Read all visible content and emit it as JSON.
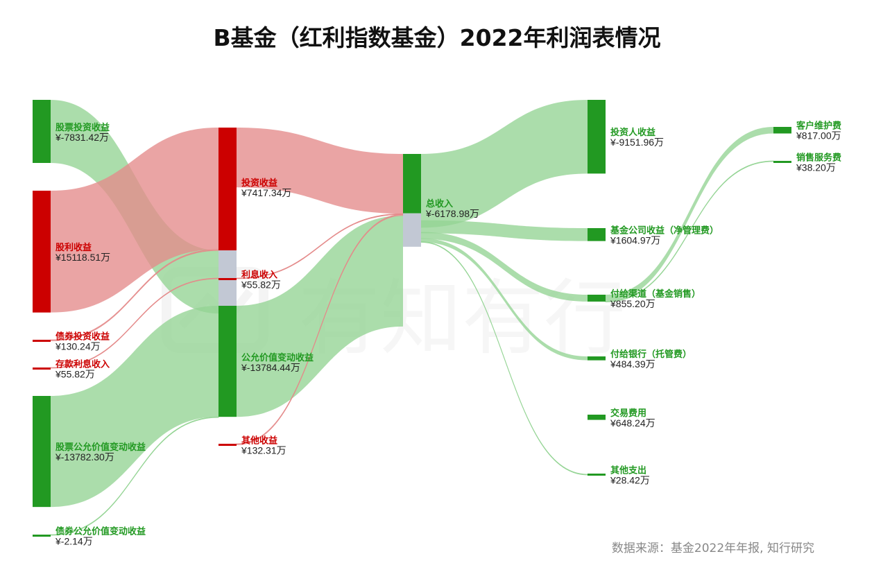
{
  "title": "B基金（红利指数基金）2022年利润表情况",
  "watermark": "有知有行",
  "source": "数据来源：基金2022年年报, 知行研究",
  "colors": {
    "positive": "#cc0000",
    "negative": "#229922",
    "positive_link": "#e48a8a",
    "negative_link": "#94d494",
    "offset": "#c2c8d4"
  },
  "currency_prefix": "¥",
  "unit": "万",
  "chart_data": {
    "type": "sankey",
    "title": "B基金（红利指数基金）2022年利润表情况",
    "nodes": [
      {
        "id": "n1",
        "name": "股票投资收益",
        "value": -7831.42,
        "value_text": "¥-7831.42万",
        "sign": "neg"
      },
      {
        "id": "n2",
        "name": "股利收益",
        "value": 15118.51,
        "value_text": "¥15118.51万",
        "sign": "pos"
      },
      {
        "id": "n3",
        "name": "债券投资收益",
        "value": 130.24,
        "value_text": "¥130.24万",
        "sign": "pos"
      },
      {
        "id": "n4",
        "name": "存款利息收入",
        "value": 55.82,
        "value_text": "¥55.82万",
        "sign": "pos"
      },
      {
        "id": "n5",
        "name": "股票公允价值变动收益",
        "value": -13782.3,
        "value_text": "¥-13782.30万",
        "sign": "neg"
      },
      {
        "id": "n6",
        "name": "债券公允价值变动收益",
        "value": -2.14,
        "value_text": "¥-2.14万",
        "sign": "neg"
      },
      {
        "id": "m1",
        "name": "投资收益",
        "value": 7417.34,
        "value_text": "¥7417.34万",
        "sign": "pos"
      },
      {
        "id": "m2",
        "name": "利息收入",
        "value": 55.82,
        "value_text": "¥55.82万",
        "sign": "pos"
      },
      {
        "id": "m3",
        "name": "公允价值变动收益",
        "value": -13784.44,
        "value_text": "¥-13784.44万",
        "sign": "neg"
      },
      {
        "id": "m4",
        "name": "其他收益",
        "value": 132.31,
        "value_text": "¥132.31万",
        "sign": "pos"
      },
      {
        "id": "t",
        "name": "总收入",
        "value": -6178.98,
        "value_text": "¥-6178.98万",
        "sign": "neg"
      },
      {
        "id": "o1",
        "name": "投资人收益",
        "value": -9151.96,
        "value_text": "¥-9151.96万",
        "sign": "neg"
      },
      {
        "id": "o2",
        "name": "基金公司收益（净管理费）",
        "value": 1604.97,
        "value_text": "¥1604.97万",
        "sign": "neg"
      },
      {
        "id": "o3",
        "name": "付给渠道（基金销售）",
        "value": 855.2,
        "value_text": "¥855.20万",
        "sign": "neg"
      },
      {
        "id": "o4",
        "name": "付给银行（托管费）",
        "value": 484.39,
        "value_text": "¥484.39万",
        "sign": "neg"
      },
      {
        "id": "o5",
        "name": "交易费用",
        "value": 648.24,
        "value_text": "¥648.24万",
        "sign": "neg"
      },
      {
        "id": "o6",
        "name": "其他支出",
        "value": 28.42,
        "value_text": "¥28.42万",
        "sign": "neg"
      },
      {
        "id": "c1",
        "name": "客户维护费",
        "value": 817.0,
        "value_text": "¥817.00万",
        "sign": "neg"
      },
      {
        "id": "c2",
        "name": "销售服务费",
        "value": 38.2,
        "value_text": "¥38.20万",
        "sign": "neg"
      }
    ],
    "links": [
      {
        "source": "n1",
        "target": "m1",
        "value": 7831.42,
        "sign": "neg"
      },
      {
        "source": "n2",
        "target": "m1",
        "value": 15118.51,
        "sign": "pos"
      },
      {
        "source": "n3",
        "target": "m1",
        "value": 130.24,
        "sign": "pos"
      },
      {
        "source": "n4",
        "target": "m2",
        "value": 55.82,
        "sign": "pos"
      },
      {
        "source": "n5",
        "target": "m3",
        "value": 13782.3,
        "sign": "neg"
      },
      {
        "source": "n6",
        "target": "m3",
        "value": 2.14,
        "sign": "neg"
      },
      {
        "source": "m1",
        "target": "t",
        "value": 7417.34,
        "sign": "pos"
      },
      {
        "source": "m2",
        "target": "t",
        "value": 55.82,
        "sign": "pos"
      },
      {
        "source": "m3",
        "target": "t",
        "value": 13784.44,
        "sign": "neg"
      },
      {
        "source": "m4",
        "target": "t",
        "value": 132.31,
        "sign": "pos"
      },
      {
        "source": "t",
        "target": "o1",
        "value": 9151.96,
        "sign": "neg"
      },
      {
        "source": "t",
        "target": "o2",
        "value": 1604.97,
        "sign": "neg"
      },
      {
        "source": "t",
        "target": "o3",
        "value": 855.2,
        "sign": "neg"
      },
      {
        "source": "t",
        "target": "o4",
        "value": 484.39,
        "sign": "neg"
      },
      {
        "source": "t",
        "target": "o6",
        "value": 28.42,
        "sign": "neg"
      },
      {
        "source": "o3",
        "target": "c1",
        "value": 817.0,
        "sign": "neg"
      },
      {
        "source": "o3",
        "target": "c2",
        "value": 38.2,
        "sign": "neg"
      }
    ]
  }
}
